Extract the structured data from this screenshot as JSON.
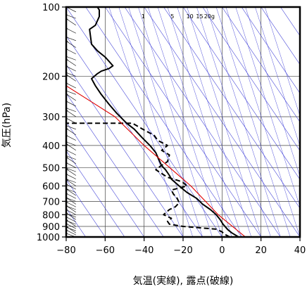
{
  "chart_data": {
    "type": "line",
    "xlabel": "気温(実線), 露点(破線)",
    "ylabel": "気圧(hPa)",
    "xlim": [
      -80,
      40
    ],
    "ylim": [
      1000,
      100
    ],
    "y_scale": "log",
    "x_ticks": [
      "−80",
      "−60",
      "−40",
      "−20",
      "0",
      "20",
      "40"
    ],
    "x_tick_values": [
      -80,
      -60,
      -40,
      -20,
      0,
      20,
      40
    ],
    "y_ticks": [
      "100",
      "200",
      "300",
      "400",
      "500",
      "600",
      "700",
      "800",
      "900",
      "1000"
    ],
    "y_tick_values": [
      100,
      200,
      300,
      400,
      500,
      600,
      700,
      800,
      900,
      1000
    ],
    "grid": true,
    "mixing_ratio_labels": [
      {
        "text": "1",
        "t": -40.5
      },
      {
        "text": "5",
        "t": -25.5
      },
      {
        "text": "10",
        "t": -16.5
      },
      {
        "text": "15",
        "t": -11.5
      },
      {
        "text": "20g",
        "t": -6.5
      }
    ],
    "series": [
      {
        "role": "temperature",
        "style": "solid",
        "color": "#000000",
        "points": [
          [
            8.5,
            1000
          ],
          [
            5,
            960
          ],
          [
            3,
            930
          ],
          [
            0.5,
            880
          ],
          [
            -1,
            840
          ],
          [
            -3,
            800
          ],
          [
            -6,
            760
          ],
          [
            -10,
            720
          ],
          [
            -13,
            680
          ],
          [
            -18,
            640
          ],
          [
            -21,
            610
          ],
          [
            -24,
            580
          ],
          [
            -26,
            560
          ],
          [
            -27,
            540
          ],
          [
            -29,
            510
          ],
          [
            -31,
            490
          ],
          [
            -32.5,
            460
          ],
          [
            -34,
            430
          ],
          [
            -37,
            400
          ],
          [
            -41,
            370
          ],
          [
            -45,
            340
          ],
          [
            -49,
            320
          ],
          [
            -54,
            290
          ],
          [
            -58,
            265
          ],
          [
            -62,
            240
          ],
          [
            -65,
            220
          ],
          [
            -67,
            205
          ],
          [
            -64,
            195
          ],
          [
            -62,
            190
          ],
          [
            -58,
            185
          ],
          [
            -56,
            180
          ],
          [
            -60,
            165
          ],
          [
            -64,
            155
          ],
          [
            -67,
            145
          ],
          [
            -68,
            125
          ],
          [
            -65,
            120
          ],
          [
            -63,
            110
          ],
          [
            -63,
            103
          ],
          [
            -64,
            100
          ]
        ]
      },
      {
        "role": "dew_point",
        "style": "dashed",
        "color": "#000000",
        "points": [
          [
            4,
            1000
          ],
          [
            1,
            970
          ],
          [
            0,
            950
          ],
          [
            -3,
            925
          ],
          [
            -20,
            900
          ],
          [
            -27,
            880
          ],
          [
            -28,
            855
          ],
          [
            -26,
            830
          ],
          [
            -30,
            800
          ],
          [
            -27,
            760
          ],
          [
            -24,
            740
          ],
          [
            -22,
            710
          ],
          [
            -23,
            680
          ],
          [
            -25,
            650
          ],
          [
            -26,
            625
          ],
          [
            -18,
            600
          ],
          [
            -20,
            580
          ],
          [
            -22,
            570
          ],
          [
            -28,
            550
          ],
          [
            -34,
            510
          ],
          [
            -32,
            495
          ],
          [
            -28,
            470
          ],
          [
            -27,
            440
          ],
          [
            -31,
            420
          ],
          [
            -28,
            400
          ],
          [
            -33,
            380
          ],
          [
            -35,
            360
          ],
          [
            -38,
            350
          ],
          [
            -42,
            335
          ],
          [
            -46,
            320
          ],
          [
            -80,
            320
          ]
        ]
      },
      {
        "role": "parcel",
        "style": "solid",
        "color": "#e00000",
        "points": [
          [
            12,
            1000
          ],
          [
            -2,
            800
          ],
          [
            -16,
            600
          ],
          [
            -40,
            400
          ],
          [
            -55,
            300
          ],
          [
            -80,
            220
          ]
        ]
      }
    ],
    "wind_barbs_x": -75,
    "wind_barb_levels": [
      1000,
      980,
      960,
      940,
      920,
      900,
      880,
      860,
      840,
      820,
      800,
      780,
      760,
      740,
      720,
      700,
      680,
      660,
      640,
      620,
      600,
      580,
      560,
      540,
      520,
      500,
      480,
      460,
      440,
      420,
      400,
      380,
      360,
      340,
      320,
      300,
      285,
      270,
      255,
      240,
      225,
      210,
      200,
      190,
      180,
      170,
      160,
      150,
      140,
      130,
      120,
      112,
      105,
      100
    ]
  }
}
